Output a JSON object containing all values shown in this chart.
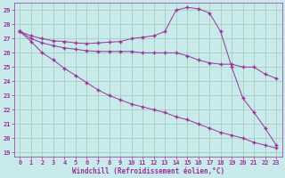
{
  "bg_color": "#c8eaea",
  "grid_color": "#a0c8b8",
  "line_color": "#993399",
  "xlabel": "Windchill (Refroidissement éolien,°C)",
  "xlim": [
    -0.5,
    23.5
  ],
  "ylim": [
    18.7,
    29.5
  ],
  "yticks": [
    19,
    20,
    21,
    22,
    23,
    24,
    25,
    26,
    27,
    28,
    29
  ],
  "xticks": [
    0,
    1,
    2,
    3,
    4,
    5,
    6,
    7,
    8,
    9,
    10,
    11,
    12,
    13,
    14,
    15,
    16,
    17,
    18,
    19,
    20,
    21,
    22,
    23
  ],
  "line1_x": [
    0,
    1,
    2,
    3,
    4,
    5,
    6,
    7,
    8,
    9,
    10,
    11,
    12,
    13,
    14,
    15,
    16,
    17,
    18,
    19,
    20,
    21,
    22,
    23
  ],
  "line1_y": [
    27.5,
    27.2,
    27.0,
    26.85,
    26.8,
    26.7,
    26.65,
    26.7,
    26.75,
    26.8,
    27.0,
    27.1,
    27.2,
    27.5,
    29.0,
    29.2,
    29.1,
    28.8,
    27.5,
    25.0,
    22.8,
    21.8,
    20.7,
    19.5
  ],
  "line2_x": [
    0,
    1,
    2,
    3,
    4,
    5,
    6,
    7,
    8,
    9,
    10,
    11,
    12,
    13,
    14,
    15,
    16,
    17,
    18,
    19,
    20,
    21,
    22,
    23
  ],
  "line2_y": [
    27.5,
    27.0,
    26.7,
    26.5,
    26.35,
    26.25,
    26.15,
    26.1,
    26.1,
    26.1,
    26.1,
    26.0,
    26.0,
    26.0,
    26.0,
    25.8,
    25.5,
    25.3,
    25.2,
    25.2,
    25.0,
    25.0,
    24.5,
    24.2
  ],
  "line3_x": [
    0,
    1,
    2,
    3,
    4,
    5,
    6,
    7,
    8,
    9,
    10,
    11,
    12,
    13,
    14,
    15,
    16,
    17,
    18,
    19,
    20,
    21,
    22,
    23
  ],
  "line3_y": [
    27.5,
    26.8,
    26.0,
    25.5,
    24.9,
    24.4,
    23.9,
    23.4,
    23.0,
    22.7,
    22.4,
    22.2,
    22.0,
    21.8,
    21.5,
    21.3,
    21.0,
    20.7,
    20.4,
    20.2,
    20.0,
    19.7,
    19.5,
    19.3
  ],
  "marker": "+",
  "markersize": 2.5,
  "linewidth": 0.7,
  "tick_fontsize": 5.0,
  "xlabel_fontsize": 5.5
}
